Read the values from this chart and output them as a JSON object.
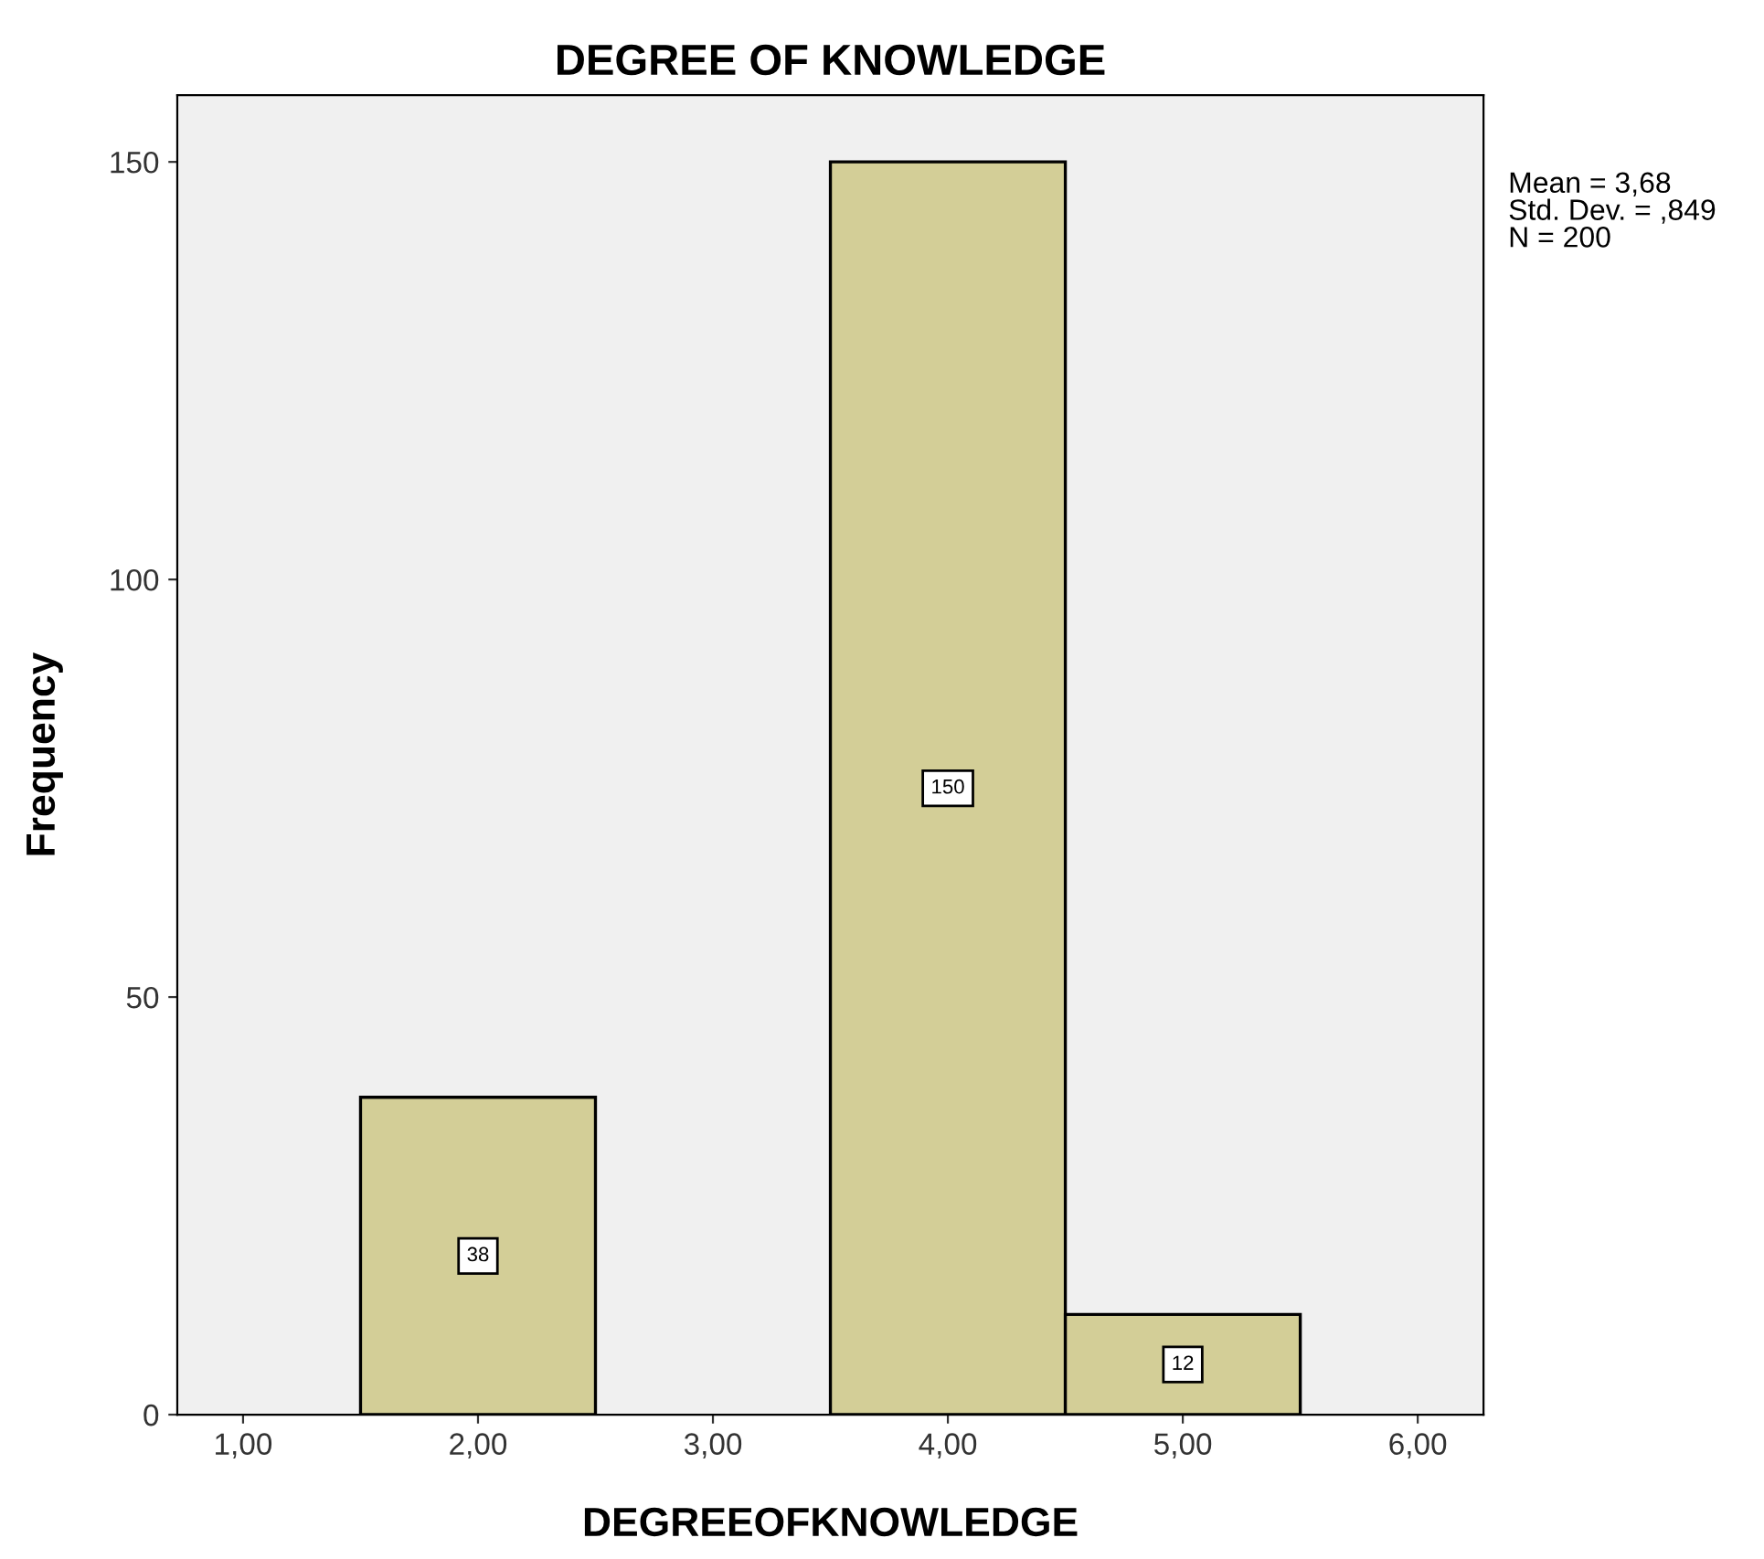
{
  "chart_data": {
    "type": "histogram",
    "title": "DEGREE OF KNOWLEDGE",
    "xlabel": "DEGREEOFKNOWLEDGE",
    "ylabel": "Frequency",
    "bins": [
      1.5,
      2.5,
      3.5,
      4.5,
      5.5
    ],
    "values": [
      38,
      0,
      150,
      12
    ],
    "value_labels": [
      "38",
      null,
      "150",
      "12"
    ],
    "color": "#d3ce97",
    "xlim": [
      0.72,
      6.28
    ],
    "ylim": [
      0,
      158
    ],
    "xticks": [
      {
        "value": 1,
        "label": "1,00"
      },
      {
        "value": 2,
        "label": "2,00"
      },
      {
        "value": 3,
        "label": "3,00"
      },
      {
        "value": 4,
        "label": "4,00"
      },
      {
        "value": 5,
        "label": "5,00"
      },
      {
        "value": 6,
        "label": "6,00"
      }
    ],
    "yticks": [
      0,
      50,
      100,
      150
    ],
    "grid": false,
    "annotations": [
      "Mean = 3,68\nStd. Dev. = ,849\nN = 200"
    ]
  }
}
